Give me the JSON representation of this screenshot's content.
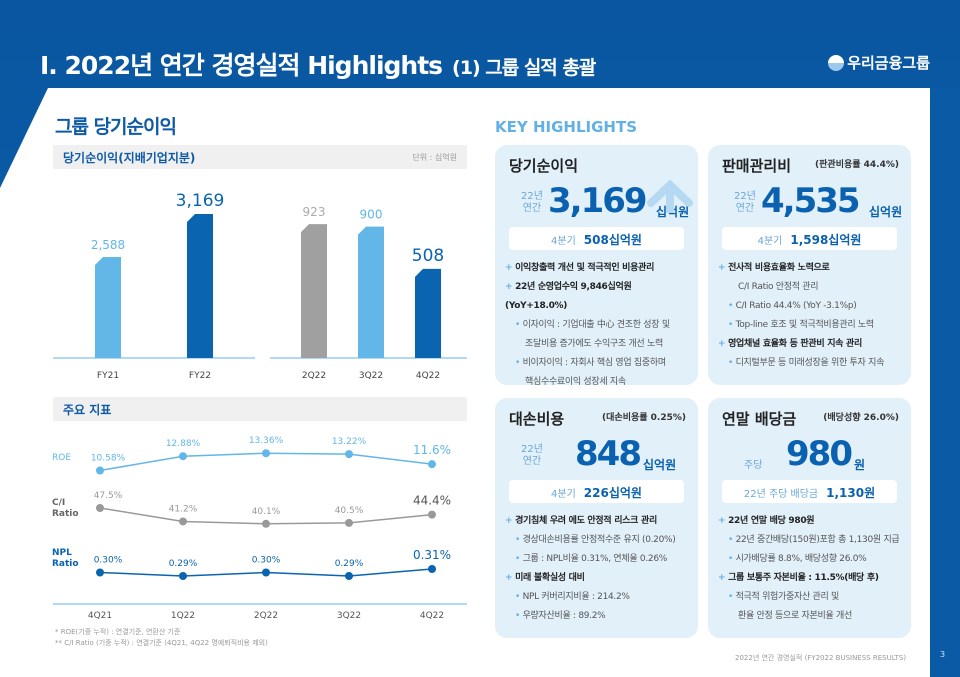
{
  "header": {
    "title": "I. 2022년 연간 경영실적 Highlights",
    "subtitle": "(1) 그룹 실적 총괄",
    "logo": "우리금융그룹"
  },
  "left": {
    "section_title": "그룹 당기순이익",
    "net_income_title": "당기순이익(지배기업지분)",
    "unit": "단위 : 십억원",
    "indicators_title": "주요 지표",
    "footnotes": [
      "* ROE(기중 누적) : 연결기준, 연환산 기준",
      "** C/I Ratio (기중 누적) : 연결기준 (4Q21, 4Q22 명예퇴직비용 제외)"
    ]
  },
  "chart_data": [
    {
      "type": "bar",
      "categories": [
        "FY21",
        "FY22"
      ],
      "values": [
        2588,
        3169
      ],
      "value_labels": [
        "2,588",
        "3,169"
      ],
      "colors": [
        "#62b6e8",
        "#0a64b0"
      ]
    },
    {
      "type": "bar",
      "categories": [
        "2Q22",
        "3Q22",
        "4Q22"
      ],
      "values": [
        923,
        900,
        508
      ],
      "value_labels": [
        "923",
        "900",
        "508"
      ],
      "colors": [
        "#a0a0a0",
        "#62b6e8",
        "#0a64b0"
      ]
    },
    {
      "type": "line",
      "categories": [
        "4Q21",
        "1Q22",
        "2Q22",
        "3Q22",
        "4Q22"
      ],
      "series": [
        {
          "name": "ROE",
          "values": [
            10.58,
            12.88,
            13.36,
            13.22,
            11.6
          ],
          "labels": [
            "10.58%",
            "12.88%",
            "13.36%",
            "13.22%",
            "11.6%"
          ],
          "color": "#62b6e8"
        },
        {
          "name": "C/I Ratio",
          "values": [
            47.5,
            41.2,
            40.1,
            40.5,
            44.4
          ],
          "labels": [
            "47.5%",
            "41.2%",
            "40.1%",
            "40.5%",
            "44.4%"
          ],
          "color": "#999999"
        },
        {
          "name": "NPL Ratio",
          "values": [
            0.3,
            0.29,
            0.3,
            0.29,
            0.31
          ],
          "labels": [
            "0.30%",
            "0.29%",
            "0.30%",
            "0.29%",
            "0.31%"
          ],
          "color": "#0a64b0"
        }
      ]
    }
  ],
  "highlights": {
    "title": "KEY HIGHLIGHTS",
    "cards": [
      {
        "title": "당기순이익",
        "note": "",
        "pre": [
          "22년",
          "연간"
        ],
        "value": "3,169",
        "unit": "십억원",
        "q_label": "4분기",
        "q_value": "508십억원",
        "bullets": [
          [
            "p",
            "이익창출력 개선 및 적극적인 비용관리"
          ],
          [
            "p",
            "22년 순영업수익 9,846십억원(YoY+18.0%)"
          ],
          [
            "s",
            "이자이익 : 기업대출 中心 견조한 성장 및"
          ],
          [
            "s2",
            "조달비용 증가에도 수익구조 개선 노력"
          ],
          [
            "s",
            "비이자이익 : 자회사 핵심 영업 집중하며"
          ],
          [
            "s2",
            "핵심수수료이익 성장세 지속"
          ]
        ]
      },
      {
        "title": "판매관리비",
        "note": "(판관비용률 44.4%)",
        "pre": [
          "22년",
          "연간"
        ],
        "value": "4,535",
        "unit": "십억원",
        "q_label": "4분기",
        "q_value": "1,598십억원",
        "bullets": [
          [
            "p",
            "전사적 비용효율화 노력으로"
          ],
          [
            "s2",
            "C/I Ratio 안정적 관리"
          ],
          [
            "s",
            "C/I Ratio 44.4% (YoY -3.1%p)"
          ],
          [
            "s",
            "Top-line 호조 및 적극적비용관리 노력"
          ],
          [
            "p",
            "영업채널 효율화 등 판관비 지속 관리"
          ],
          [
            "s",
            "디지털부문 등 미래성장을 위한 투자 지속"
          ]
        ]
      },
      {
        "title": "대손비용",
        "note": "(대손비용률 0.25%)",
        "pre": [
          "22년",
          "연간"
        ],
        "value": "848",
        "unit": "십억원",
        "q_label": "4분기",
        "q_value": "226십억원",
        "bullets": [
          [
            "p",
            "경기침체 우려 에도 안정적 리스크 관리"
          ],
          [
            "s",
            "경상대손비용률 안정적수준 유지 (0.20%)"
          ],
          [
            "s",
            "그룹 : NPL비율 0.31%, 연체율 0.26%"
          ],
          [
            "p",
            "미래 불확실성 대비"
          ],
          [
            "s",
            "NPL 커버리지비율 : 214.2%"
          ],
          [
            "s",
            "우량자산비율 : 89.2%"
          ]
        ]
      },
      {
        "title": "연말 배당금",
        "note": "(배당성향 26.0%)",
        "pre": [
          "주당"
        ],
        "value": "980",
        "unit": "원",
        "q_label": "22년 주당 배당금",
        "q_value": "1,130원",
        "bullets": [
          [
            "p",
            "22년 연말 배당 980원"
          ],
          [
            "s",
            "22년 중간배당(150원)포함 총 1,130원 지급"
          ],
          [
            "s",
            "시가배당률 8.8%, 배당성향 26.0%"
          ],
          [
            "p",
            "그룹 보통주 자본비율 : 11.5%(배당 후)"
          ],
          [
            "s",
            "적극적 위험가중자산 관리 및"
          ],
          [
            "s2",
            "환율 안정 등으로 자본비율 개선"
          ]
        ]
      }
    ]
  },
  "footer": {
    "text": "2022년 연간 경영실적 (FY2022 BUSINESS RESULTS)",
    "page": "3"
  }
}
